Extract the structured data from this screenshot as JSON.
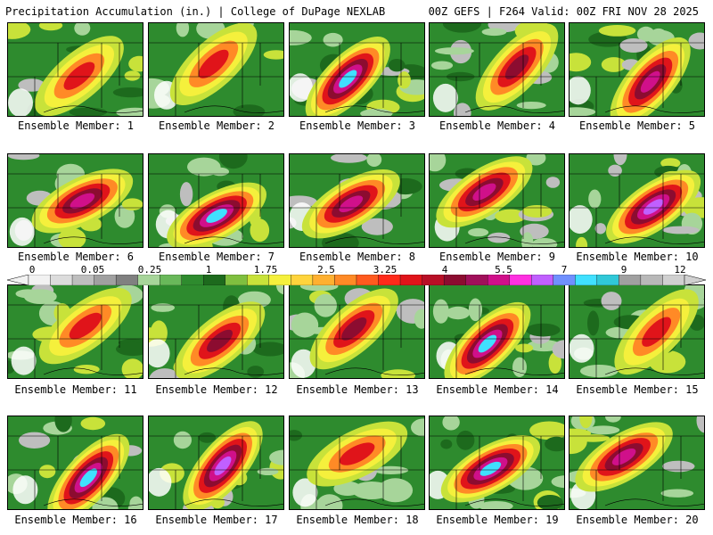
{
  "header": {
    "left": "Precipitation Accumulation (in.) | College of DuPage NEXLAB",
    "right": "00Z GEFS | F264 Valid: 00Z FRI NOV 28 2025"
  },
  "member_prefix": "Ensemble Member: ",
  "members": [
    {
      "label": "Ensemble Member: 1",
      "peak": 3.25
    },
    {
      "label": "Ensemble Member: 2",
      "peak": 3.25
    },
    {
      "label": "Ensemble Member: 3",
      "peak": 8
    },
    {
      "label": "Ensemble Member: 4",
      "peak": 4
    },
    {
      "label": "Ensemble Member: 5",
      "peak": 5.5
    },
    {
      "label": "Ensemble Member: 6",
      "peak": 5.5
    },
    {
      "label": "Ensemble Member: 7",
      "peak": 8
    },
    {
      "label": "Ensemble Member: 8",
      "peak": 5.5
    },
    {
      "label": "Ensemble Member: 9",
      "peak": 5.5
    },
    {
      "label": "Ensemble Member: 10",
      "peak": 7
    },
    {
      "label": "Ensemble Member: 11",
      "peak": 3.25
    },
    {
      "label": "Ensemble Member: 12",
      "peak": 4
    },
    {
      "label": "Ensemble Member: 13",
      "peak": 4
    },
    {
      "label": "Ensemble Member: 14",
      "peak": 8
    },
    {
      "label": "Ensemble Member: 15",
      "peak": 3.25
    },
    {
      "label": "Ensemble Member: 16",
      "peak": 8
    },
    {
      "label": "Ensemble Member: 17",
      "peak": 7
    },
    {
      "label": "Ensemble Member: 18",
      "peak": 3.25
    },
    {
      "label": "Ensemble Member: 19",
      "peak": 8
    },
    {
      "label": "Ensemble Member: 20",
      "peak": 5.5
    }
  ],
  "legend": {
    "labels": [
      "0",
      "0.05",
      "0.25",
      "1",
      "1.75",
      "2.5",
      "3.25",
      "4",
      "5.5",
      "7",
      "9",
      "12"
    ],
    "colors": [
      "#f2f2f2",
      "#dcdcdc",
      "#bebebe",
      "#a0a0a0",
      "#808080",
      "#a7d59a",
      "#69b85a",
      "#2e8b2e",
      "#1d6a1d",
      "#7fbf3f",
      "#c8e23a",
      "#f5f03c",
      "#ffd43c",
      "#ffb030",
      "#ff8a26",
      "#ff5a1f",
      "#ff2a1a",
      "#e0141a",
      "#b80f26",
      "#8c0c30",
      "#a0105a",
      "#d0108a",
      "#ff30e0",
      "#c060ff",
      "#7090ff",
      "#40e0ff",
      "#30c8d8",
      "#a0a0a0",
      "#b8b8b8",
      "#d0d0d0"
    ]
  },
  "colors": {
    "none": "#ffffff",
    "trace": "#a7d59a",
    "light": "#2e8b2e",
    "moderate": "#c8e23a",
    "yellow": "#f5f03c",
    "orange": "#ff8a26",
    "red": "#e0141a",
    "darkred": "#8c0c30",
    "magenta": "#d0108a",
    "purple": "#c060ff",
    "cyan": "#40e0ff"
  }
}
